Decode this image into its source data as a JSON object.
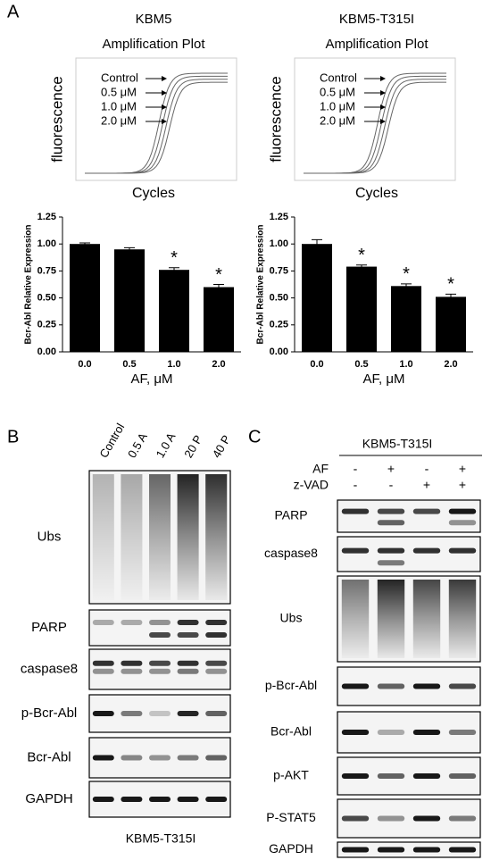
{
  "panel_labels": [
    "A",
    "B",
    "C"
  ],
  "amplification_plots": [
    {
      "title": "KBM5",
      "subtitle": "Amplification Plot",
      "y_label": "fluorescence",
      "x_label": "Cycles",
      "curve_labels": [
        "Control",
        "0.5 μM",
        "1.0 μM",
        "2.0 μM"
      ]
    },
    {
      "title": "KBM5-T315I",
      "subtitle": "Amplification Plot",
      "y_label": "fluorescence",
      "x_label": "Cycles",
      "curve_labels": [
        "Control",
        "0.5 μM",
        "1.0 μM",
        "2.0 μM"
      ]
    }
  ],
  "chart_data": [
    {
      "type": "bar",
      "categories": [
        "0.0",
        "0.5",
        "1.0",
        "2.0"
      ],
      "values": [
        1.0,
        0.95,
        0.76,
        0.6
      ],
      "errors": [
        0.01,
        0.015,
        0.02,
        0.025
      ],
      "stars": [
        null,
        null,
        "*",
        "*"
      ],
      "color": "#000000",
      "y_label": "Bcr-Abl Relative Expression",
      "x_label": "AF, μM",
      "ylim": [
        0,
        1.25
      ],
      "yticks": [
        {
          "value": 0,
          "label": "0.00"
        },
        {
          "value": 0.25,
          "label": "0.25"
        },
        {
          "value": 0.5,
          "label": "0.50"
        },
        {
          "value": 0.75,
          "label": "0.75"
        },
        {
          "value": 1,
          "label": "1.00"
        },
        {
          "value": 1.25,
          "label": "1.25"
        }
      ]
    },
    {
      "type": "bar",
      "categories": [
        "0.0",
        "0.5",
        "1.0",
        "2.0"
      ],
      "values": [
        1.0,
        0.79,
        0.61,
        0.51
      ],
      "errors": [
        0.04,
        0.015,
        0.02,
        0.025
      ],
      "stars": [
        null,
        "*",
        "*",
        "*"
      ],
      "color": "#000000",
      "y_label": "Bcr-Abl Relative Expression",
      "x_label": "AF, μM",
      "ylim": [
        0,
        1.25
      ],
      "yticks": [
        {
          "value": 0,
          "label": "0.00"
        },
        {
          "value": 0.25,
          "label": "0.25"
        },
        {
          "value": 0.5,
          "label": "0.50"
        },
        {
          "value": 0.75,
          "label": "0.75"
        },
        {
          "value": 1,
          "label": "1.00"
        },
        {
          "value": 1.25,
          "label": "1.25"
        }
      ]
    }
  ],
  "blot_b": {
    "lanes": [
      "Control",
      "0.5 A",
      "1.0 A",
      "20 P",
      "40 P"
    ],
    "rows": [
      "Ubs",
      "PARP",
      "caspase8",
      "p-Bcr-Abl",
      "Bcr-Abl",
      "GAPDH"
    ],
    "cell_line": "KBM5-T315I"
  },
  "blot_c": {
    "cell_line": "KBM5-T315I",
    "treatments": [
      {
        "name": "AF",
        "states": [
          "-",
          "+",
          "-",
          "+"
        ]
      },
      {
        "name": "z-VAD",
        "states": [
          "-",
          "-",
          "+",
          "+"
        ]
      }
    ],
    "rows": [
      "PARP",
      "caspase8",
      "Ubs",
      "p-Bcr-Abl",
      "Bcr-Abl",
      "p-AKT",
      "P-STAT5",
      "GAPDH"
    ]
  }
}
